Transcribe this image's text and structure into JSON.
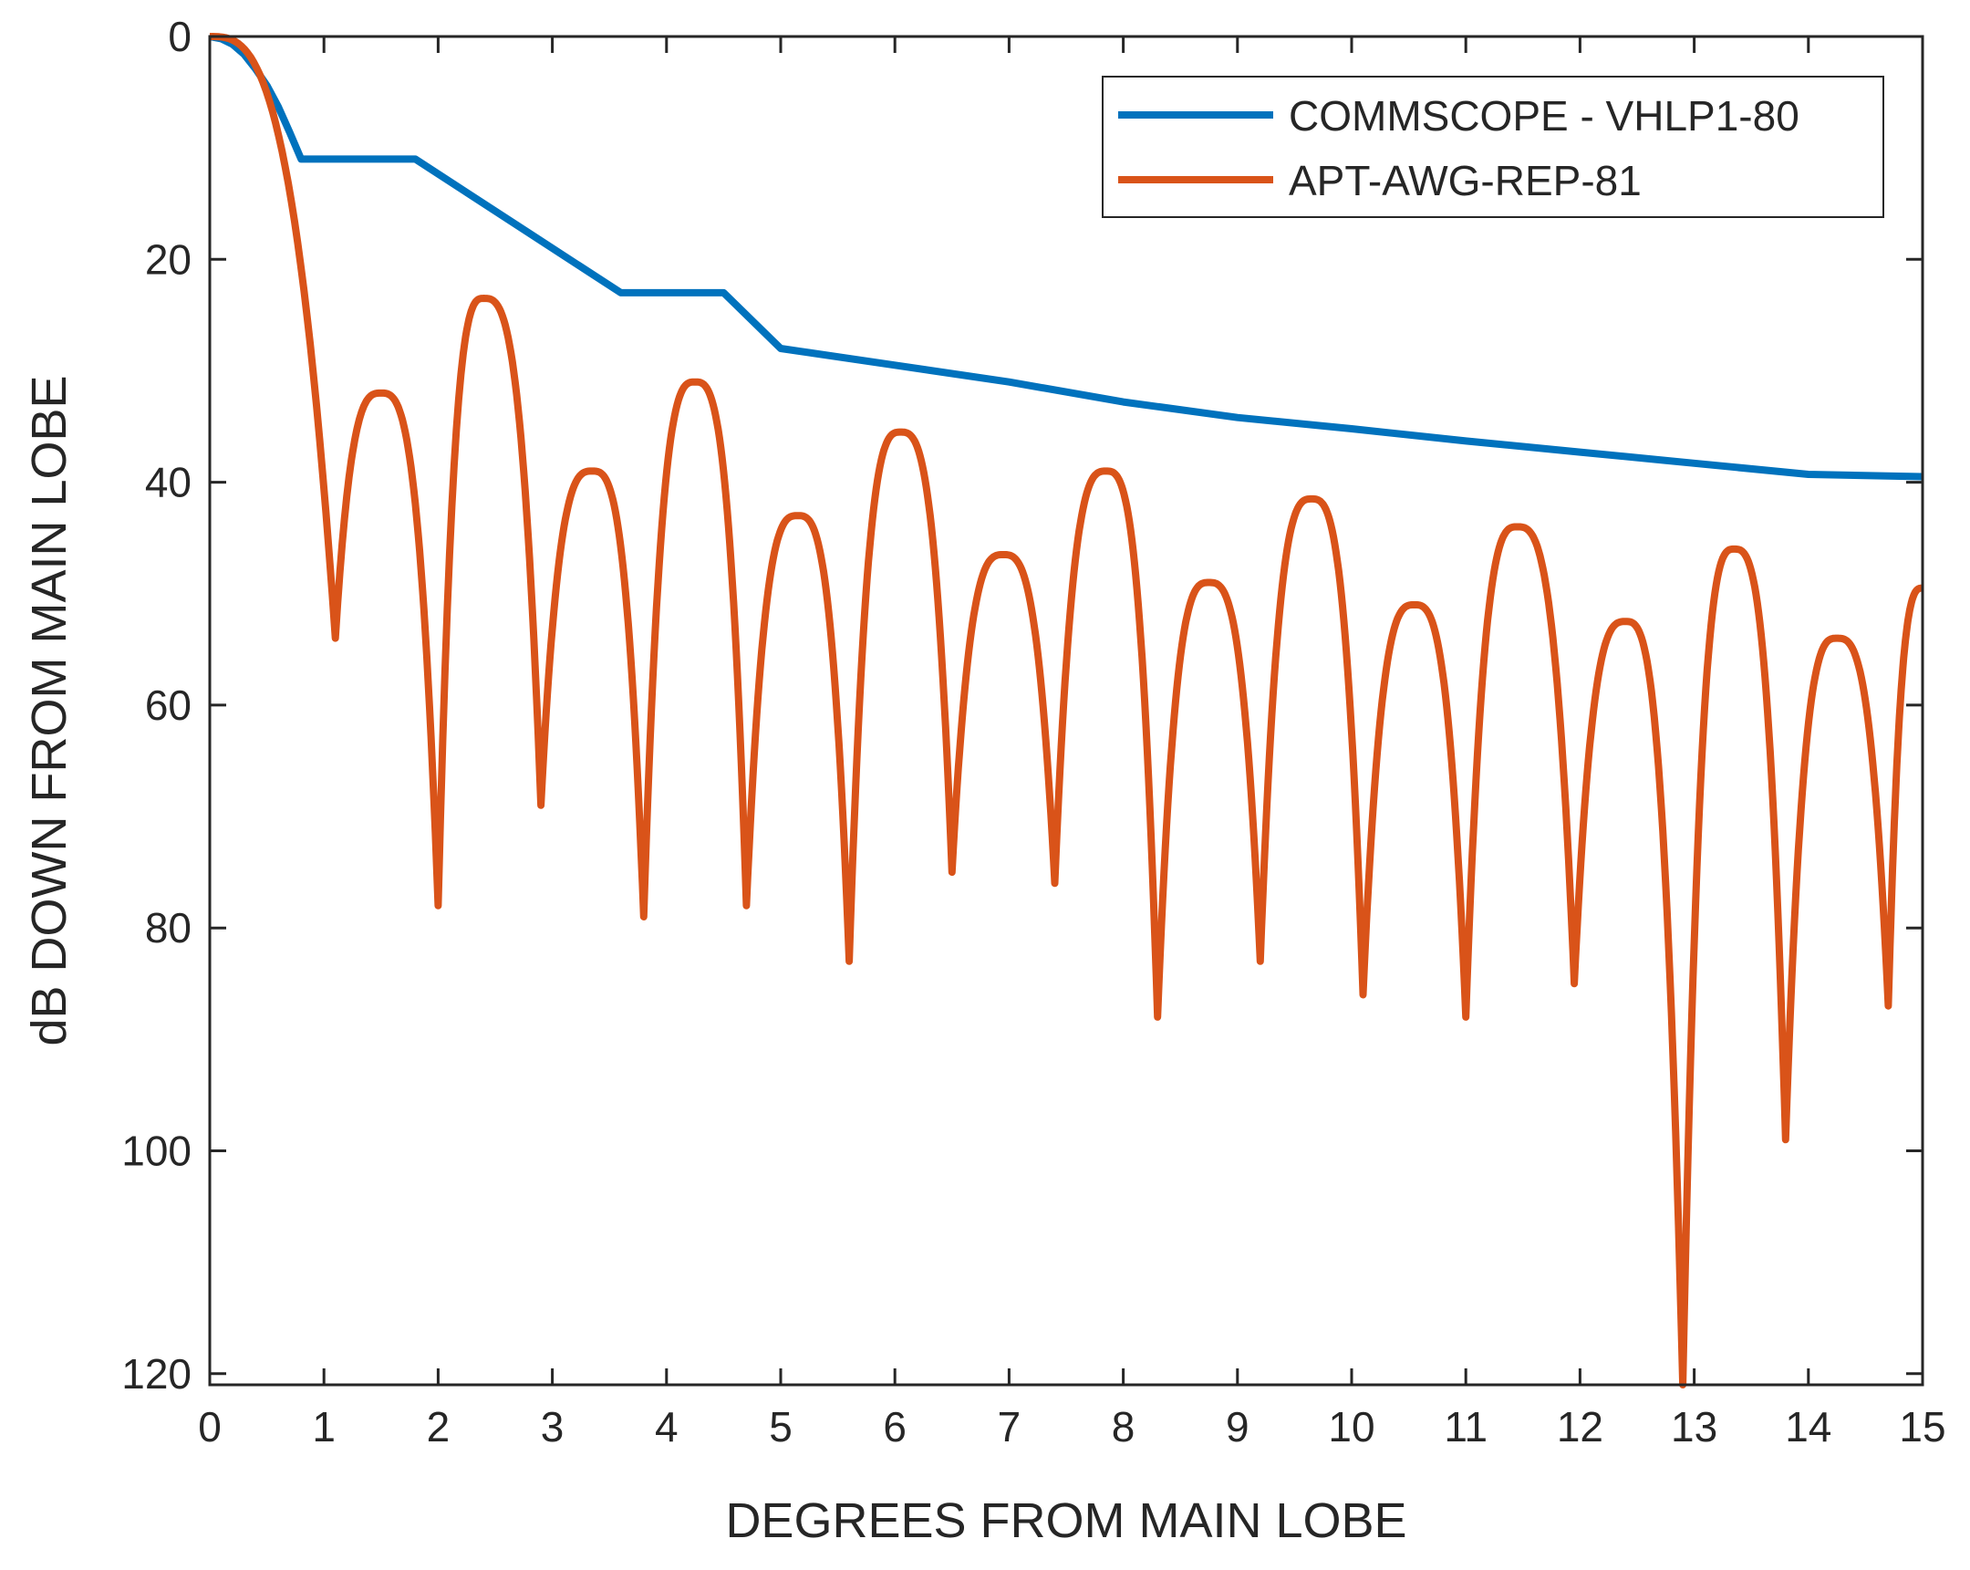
{
  "chart_data": {
    "type": "line",
    "title": "",
    "xlabel": "DEGREES FROM MAIN LOBE",
    "ylabel": "dB DOWN FROM MAIN LOBE",
    "xlim": [
      0,
      15
    ],
    "ylim": [
      0,
      121
    ],
    "y_reversed": true,
    "x_ticks": [
      0,
      1,
      2,
      3,
      4,
      5,
      6,
      7,
      8,
      9,
      10,
      11,
      12,
      13,
      14,
      15
    ],
    "y_ticks": [
      0,
      20,
      40,
      60,
      80,
      100,
      120
    ],
    "grid": false,
    "legend_position": "top-right",
    "series": [
      {
        "name": "COMMSCOPE - VHLP1-80",
        "color": "#0072BD",
        "style": "polyline",
        "x": [
          0,
          0.1,
          0.2,
          0.3,
          0.4,
          0.5,
          0.6,
          0.7,
          0.8,
          1.8,
          3.6,
          4.5,
          5.0,
          6.0,
          7.0,
          8.0,
          9.0,
          10.0,
          11.0,
          12.0,
          13.0,
          14.0,
          15.0
        ],
        "y": [
          0,
          0.2,
          0.7,
          1.6,
          2.9,
          4.4,
          6.3,
          8.6,
          11,
          11,
          23,
          23,
          28,
          29.5,
          31,
          32.8,
          34.2,
          35.2,
          36.3,
          37.3,
          38.3,
          39.3,
          39.5
        ]
      },
      {
        "name": "APT-AWG-REP-81",
        "color": "#D95319",
        "style": "lobes",
        "start": [
          0,
          0
        ],
        "mainlobe_null": [
          1.1,
          54
        ],
        "lobes": [
          {
            "peak": [
              1.5,
              32
            ],
            "null": [
              2.0,
              78
            ]
          },
          {
            "peak": [
              2.4,
              23.5
            ],
            "null": [
              2.9,
              69
            ]
          },
          {
            "peak": [
              3.35,
              39
            ],
            "null": [
              3.8,
              79
            ]
          },
          {
            "peak": [
              4.25,
              31
            ],
            "null": [
              4.7,
              78
            ]
          },
          {
            "peak": [
              5.15,
              43
            ],
            "null": [
              5.6,
              83
            ]
          },
          {
            "peak": [
              6.05,
              35.5
            ],
            "null": [
              6.5,
              75
            ]
          },
          {
            "peak": [
              6.95,
              46.5
            ],
            "null": [
              7.4,
              76
            ]
          },
          {
            "peak": [
              7.85,
              39
            ],
            "null": [
              8.3,
              88
            ]
          },
          {
            "peak": [
              8.75,
              49
            ],
            "null": [
              9.2,
              83
            ]
          },
          {
            "peak": [
              9.65,
              41.5
            ],
            "null": [
              10.1,
              86
            ]
          },
          {
            "peak": [
              10.55,
              51
            ],
            "null": [
              11.0,
              88
            ]
          },
          {
            "peak": [
              11.45,
              44
            ],
            "null": [
              11.95,
              85
            ]
          },
          {
            "peak": [
              12.4,
              52.5
            ],
            "null": [
              12.9,
              121
            ]
          },
          {
            "peak": [
              13.35,
              46
            ],
            "null": [
              13.8,
              99
            ]
          },
          {
            "peak": [
              14.25,
              54
            ],
            "null": [
              14.7,
              87
            ]
          }
        ],
        "end": [
          15.0,
          49.5
        ]
      }
    ]
  }
}
